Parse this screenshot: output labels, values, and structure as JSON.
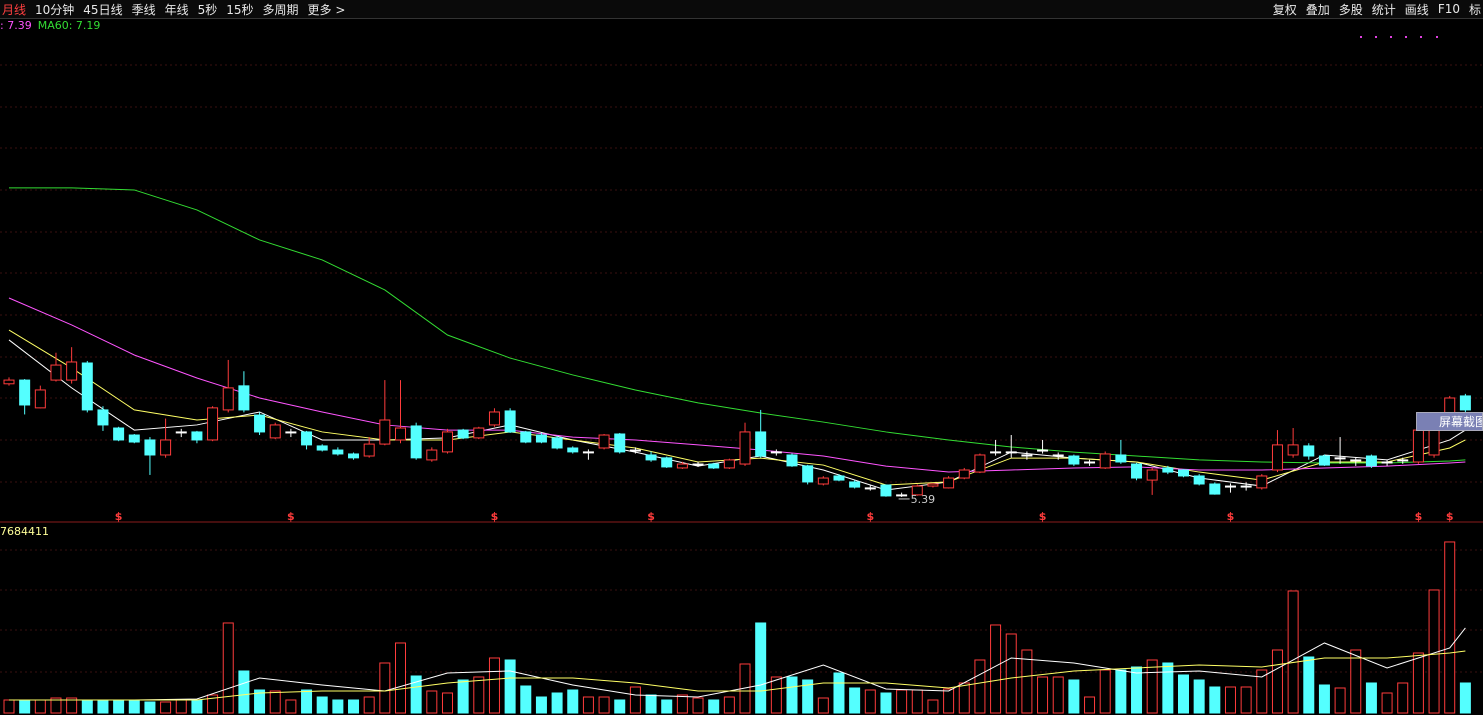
{
  "toolbar": {
    "left": [
      "月线",
      "10分钟",
      "45日线",
      "季线",
      "年线",
      "5秒",
      "15秒",
      "多周期",
      "更多 >"
    ],
    "right": [
      "复权",
      "叠加",
      "多股",
      "统计",
      "画线",
      "F10",
      "标"
    ]
  },
  "overlay_button": "屏幕截图",
  "chart_data": [
    {
      "type": "candlestick",
      "indicator_labels": [
        {
          "text": ": 7.39",
          "color": "#ff55ff"
        },
        {
          "text": "MA60: 7.19",
          "color": "#33dd33"
        }
      ],
      "up_color": "#ff3c3c",
      "down_color": "#54ffff",
      "flat_color": "#ffffff",
      "ylim": [
        4.27,
        28.57
      ],
      "candles": [
        [
          10.89,
          11.2,
          10.8,
          11.07
        ],
        [
          11.07,
          11.12,
          9.4,
          9.86
        ],
        [
          9.72,
          10.8,
          9.7,
          10.59
        ],
        [
          11.07,
          12.4,
          11.0,
          11.8
        ],
        [
          11.07,
          12.67,
          10.9,
          11.95
        ],
        [
          11.9,
          12.0,
          9.5,
          9.62
        ],
        [
          9.62,
          9.8,
          8.6,
          8.89
        ],
        [
          8.74,
          8.8,
          8.1,
          8.16
        ],
        [
          8.4,
          8.45,
          8.0,
          8.06
        ],
        [
          8.16,
          8.3,
          6.46,
          7.43
        ],
        [
          7.43,
          9.2,
          7.3,
          8.16
        ],
        [
          8.55,
          8.7,
          8.3,
          8.55
        ],
        [
          8.55,
          8.6,
          8.0,
          8.16
        ],
        [
          8.16,
          9.8,
          8.1,
          9.72
        ],
        [
          9.62,
          12.05,
          9.5,
          10.69
        ],
        [
          10.79,
          11.5,
          9.5,
          9.62
        ],
        [
          9.37,
          9.5,
          8.4,
          8.55
        ],
        [
          8.26,
          9.0,
          8.2,
          8.89
        ],
        [
          8.55,
          8.7,
          8.3,
          8.55
        ],
        [
          8.55,
          8.6,
          7.7,
          7.92
        ],
        [
          7.87,
          7.95,
          7.6,
          7.67
        ],
        [
          7.67,
          7.8,
          7.4,
          7.48
        ],
        [
          7.48,
          7.55,
          7.2,
          7.29
        ],
        [
          7.38,
          8.3,
          7.3,
          7.96
        ],
        [
          7.96,
          11.07,
          7.9,
          9.13
        ],
        [
          8.16,
          11.07,
          8.0,
          8.74
        ],
        [
          8.84,
          9.0,
          7.2,
          7.29
        ],
        [
          7.19,
          7.8,
          7.1,
          7.67
        ],
        [
          7.58,
          8.7,
          7.5,
          8.55
        ],
        [
          8.64,
          8.7,
          8.2,
          8.26
        ],
        [
          8.26,
          8.8,
          8.2,
          8.74
        ],
        [
          8.89,
          9.7,
          8.8,
          9.52
        ],
        [
          9.57,
          9.7,
          8.5,
          8.55
        ],
        [
          8.55,
          8.6,
          8.0,
          8.06
        ],
        [
          8.4,
          8.5,
          8.0,
          8.06
        ],
        [
          8.26,
          8.35,
          7.7,
          7.77
        ],
        [
          7.77,
          7.85,
          7.5,
          7.58
        ],
        [
          7.58,
          7.7,
          7.2,
          7.58
        ],
        [
          7.77,
          8.45,
          7.7,
          8.4
        ],
        [
          8.45,
          8.5,
          7.5,
          7.58
        ],
        [
          7.67,
          7.8,
          7.5,
          7.67
        ],
        [
          7.43,
          7.6,
          7.1,
          7.19
        ],
        [
          7.29,
          7.35,
          6.8,
          6.85
        ],
        [
          6.8,
          7.1,
          6.75,
          6.99
        ],
        [
          6.99,
          7.1,
          6.85,
          6.99
        ],
        [
          6.99,
          7.05,
          6.75,
          6.8
        ],
        [
          6.8,
          7.25,
          6.75,
          7.19
        ],
        [
          6.99,
          9.0,
          6.9,
          8.55
        ],
        [
          8.55,
          9.62,
          7.3,
          7.38
        ],
        [
          7.58,
          7.7,
          7.4,
          7.58
        ],
        [
          7.43,
          7.5,
          6.85,
          6.9
        ],
        [
          6.9,
          6.95,
          6.0,
          6.12
        ],
        [
          6.02,
          6.4,
          5.95,
          6.31
        ],
        [
          6.41,
          6.5,
          6.15,
          6.21
        ],
        [
          6.12,
          6.2,
          5.8,
          5.87
        ],
        [
          5.83,
          5.95,
          5.7,
          5.83
        ],
        [
          5.97,
          6.0,
          5.4,
          5.44
        ],
        [
          5.49,
          5.6,
          5.39,
          5.49
        ],
        [
          5.49,
          6.0,
          5.45,
          5.92
        ],
        [
          5.92,
          6.05,
          5.85,
          6.02
        ],
        [
          5.83,
          6.4,
          5.8,
          6.31
        ],
        [
          6.31,
          6.8,
          6.25,
          6.7
        ],
        [
          6.6,
          7.5,
          6.55,
          7.43
        ],
        [
          7.58,
          8.16,
          7.4,
          7.58
        ],
        [
          7.58,
          8.4,
          7.3,
          7.58
        ],
        [
          7.43,
          7.6,
          7.2,
          7.43
        ],
        [
          7.67,
          8.16,
          7.5,
          7.67
        ],
        [
          7.43,
          7.55,
          7.2,
          7.43
        ],
        [
          7.38,
          7.45,
          6.9,
          6.99
        ],
        [
          7.09,
          7.2,
          6.9,
          7.09
        ],
        [
          6.8,
          7.6,
          6.75,
          7.48
        ],
        [
          7.43,
          8.16,
          7.0,
          7.09
        ],
        [
          6.99,
          7.05,
          6.2,
          6.31
        ],
        [
          6.21,
          6.8,
          5.49,
          6.7
        ],
        [
          6.8,
          6.9,
          6.5,
          6.6
        ],
        [
          6.7,
          6.75,
          6.35,
          6.41
        ],
        [
          6.41,
          6.5,
          5.95,
          6.02
        ],
        [
          6.02,
          6.1,
          5.5,
          5.53
        ],
        [
          5.92,
          6.05,
          5.6,
          5.92
        ],
        [
          5.92,
          6.1,
          5.7,
          5.92
        ],
        [
          5.83,
          6.5,
          5.75,
          6.41
        ],
        [
          6.7,
          8.64,
          6.6,
          7.92
        ],
        [
          7.43,
          8.74,
          7.3,
          7.92
        ],
        [
          7.87,
          8.0,
          7.2,
          7.38
        ],
        [
          7.38,
          7.45,
          6.9,
          6.94
        ],
        [
          7.29,
          8.3,
          7.0,
          7.29
        ],
        [
          7.19,
          7.3,
          6.9,
          7.19
        ],
        [
          7.38,
          7.45,
          6.8,
          6.9
        ],
        [
          7.09,
          7.2,
          6.9,
          7.09
        ],
        [
          7.19,
          7.3,
          7.0,
          7.19
        ],
        [
          7.09,
          8.64,
          7.0,
          8.64
        ],
        [
          7.43,
          9.3,
          7.3,
          9.23
        ],
        [
          9.23,
          10.3,
          9.1,
          10.2
        ],
        [
          10.3,
          10.4,
          9.5,
          9.62
        ]
      ],
      "line_x": [
        0,
        4,
        8,
        12,
        16,
        20,
        24,
        28,
        32,
        36,
        40,
        44,
        48,
        52,
        56,
        60,
        64,
        68,
        72,
        76,
        80,
        84,
        88,
        92,
        93
      ],
      "lines": [
        {
          "color": "#ffffff",
          "values": [
            13.02,
            10.69,
            8.64,
            8.89,
            9.52,
            8.16,
            8.16,
            8.26,
            8.89,
            8.16,
            7.57,
            6.89,
            7.38,
            6.7,
            5.73,
            6.12,
            7.57,
            7.28,
            7.09,
            6.31,
            5.92,
            7.43,
            7.19,
            8.16,
            8.64
          ]
        },
        {
          "color": "#ffff66",
          "values": [
            13.5,
            11.66,
            9.62,
            9.13,
            9.37,
            8.55,
            8.16,
            8.16,
            8.55,
            8.16,
            7.77,
            7.09,
            7.28,
            6.94,
            5.97,
            6.12,
            7.28,
            7.28,
            7.09,
            6.6,
            6.21,
            7.09,
            7.09,
            7.77,
            8.16
          ]
        },
        {
          "color": "#ff55ff",
          "values": [
            15.06,
            13.75,
            12.29,
            11.17,
            10.2,
            9.52,
            8.89,
            8.64,
            8.64,
            8.3,
            8.16,
            7.92,
            7.67,
            7.38,
            6.89,
            6.6,
            6.7,
            6.8,
            6.85,
            6.7,
            6.7,
            6.8,
            6.89,
            7.04,
            7.09
          ]
        },
        {
          "color": "#33dd33",
          "values": [
            20.41,
            20.41,
            20.31,
            19.34,
            17.88,
            16.91,
            15.45,
            13.26,
            12.14,
            11.32,
            10.59,
            9.96,
            9.47,
            9.03,
            8.55,
            8.16,
            7.82,
            7.57,
            7.38,
            7.19,
            7.09,
            7.04,
            7.04,
            7.14,
            7.19
          ]
        }
      ],
      "markers": {
        "label": "$",
        "color": "#ff3c3c",
        "indices": [
          7,
          18,
          31,
          41,
          55,
          66,
          78,
          90,
          92
        ]
      },
      "low_label": {
        "index": 57,
        "value": 5.39
      }
    },
    {
      "type": "bar",
      "ylim": [
        0,
        7684411
      ],
      "yticks": [
        7684411
      ],
      "values": [
        546000,
        546000,
        546000,
        630000,
        630000,
        546000,
        546000,
        546000,
        546000,
        462000,
        462000,
        546000,
        546000,
        756000,
        3780000,
        1764000,
        966000,
        924000,
        546000,
        966000,
        672000,
        546000,
        546000,
        672000,
        2100000,
        2940000,
        1554000,
        924000,
        840000,
        1386000,
        1512000,
        2310000,
        2226000,
        1134000,
        672000,
        840000,
        966000,
        672000,
        672000,
        546000,
        1092000,
        756000,
        546000,
        756000,
        630000,
        546000,
        672000,
        2058000,
        3780000,
        1512000,
        1512000,
        1386000,
        630000,
        1680000,
        1050000,
        966000,
        840000,
        966000,
        966000,
        546000,
        1008000,
        1260000,
        2226000,
        3696000,
        3318000,
        2646000,
        1512000,
        1512000,
        1386000,
        672000,
        1806000,
        1806000,
        1932000,
        2226000,
        2100000,
        1596000,
        1386000,
        1092000,
        1092000,
        1092000,
        1806000,
        2646000,
        5124000,
        2352000,
        1176000,
        1050000,
        2646000,
        1260000,
        840000,
        1260000,
        2520000,
        5166000,
        7182000,
        1260000
      ],
      "lines": [
        {
          "color": "#ffffff",
          "values": [
            546000,
            546000,
            546000,
            588000,
            1470000,
            1176000,
            924000,
            1680000,
            1764000,
            1176000,
            756000,
            672000,
            1176000,
            2016000,
            1008000,
            924000,
            2310000,
            2100000,
            1680000,
            1764000,
            1512000,
            2940000,
            1890000,
            2730000,
            3570000
          ]
        },
        {
          "color": "#ffff66",
          "values": [
            546000,
            546000,
            546000,
            546000,
            840000,
            924000,
            924000,
            1260000,
            1470000,
            1470000,
            1260000,
            924000,
            924000,
            1260000,
            1260000,
            1050000,
            1470000,
            1764000,
            1890000,
            2016000,
            1932000,
            2310000,
            2310000,
            2520000,
            2604000
          ]
        }
      ]
    }
  ]
}
